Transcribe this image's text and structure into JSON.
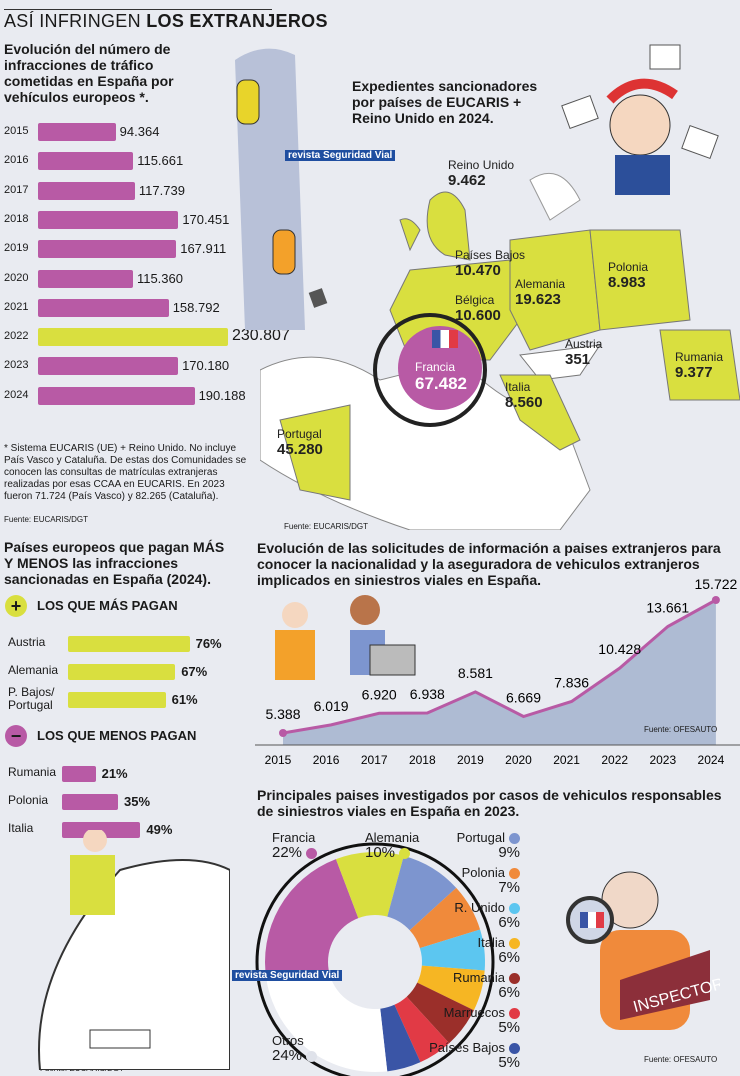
{
  "header": {
    "title_light": "ASÍ INFRINGEN",
    "title_bold": "LOS EXTRANJEROS"
  },
  "logo": "revista Seguridad Vial",
  "chart_data": [
    {
      "type": "bar",
      "orientation": "horizontal",
      "title": "Evolución del número de infracciones de tráfico cometidas en España por vehículos europeos *.",
      "categories": [
        "2015",
        "2016",
        "2017",
        "2018",
        "2019",
        "2020",
        "2021",
        "2022",
        "2023",
        "2024"
      ],
      "values": [
        94364,
        115661,
        117739,
        170451,
        167911,
        115360,
        158792,
        230807,
        170180,
        190188
      ],
      "value_labels": [
        "94.364",
        "115.661",
        "117.739",
        "170.451",
        "167.911",
        "115.360",
        "158.792",
        "230.807",
        "170.180",
        "190.188"
      ],
      "highlight": "2022",
      "colors": {
        "default": "#b85aa5",
        "highlight": "#d9df3f"
      },
      "footnote": "* Sistema EUCARIS (UE) + Reino Unido. No incluye País Vasco y Cataluña. De estas dos Comunidades se conocen las consultas de matrículas extranjeras realizadas por esas CCAA en EUCARIS. En 2023 fueron 71.724 (País Vasco) y 82.265 (Cataluña).",
      "source": "Fuente: EUCARIS/DGT"
    },
    {
      "type": "map",
      "title": "Expedientes sancionadores por países de EUCARIS + Reino Unido en 2024.",
      "regions": [
        {
          "name": "Reino Unido",
          "value": "9.462"
        },
        {
          "name": "Países Bajos",
          "value": "10.470"
        },
        {
          "name": "Alemania",
          "value": "19.623"
        },
        {
          "name": "Polonia",
          "value": "8.983"
        },
        {
          "name": "Bélgica",
          "value": "10.600"
        },
        {
          "name": "Francia",
          "value": "67.482"
        },
        {
          "name": "Austria",
          "value": "351"
        },
        {
          "name": "Rumania",
          "value": "9.377"
        },
        {
          "name": "Italia",
          "value": "8.560"
        },
        {
          "name": "Portugal",
          "value": "45.280"
        }
      ],
      "source": "Fuente: EUCARIS/DGT"
    },
    {
      "type": "bar",
      "orientation": "horizontal",
      "title": "Países europeos que pagan MÁS Y MENOS las infracciones sancionadas en España (2024).",
      "groups": [
        {
          "label": "LOS QUE MÁS PAGAN",
          "color": "#d9df3f",
          "categories": [
            "Austria",
            "Alemania",
            "P. Bajos/ Portugal"
          ],
          "values": [
            76,
            67,
            61
          ]
        },
        {
          "label": "LOS QUE MENOS PAGAN",
          "color": "#b85aa5",
          "categories": [
            "Rumania",
            "Polonia",
            "Italia"
          ],
          "values": [
            21,
            35,
            49
          ]
        }
      ],
      "unit": "%",
      "source": "Fuente: EUCARIS/DGT"
    },
    {
      "type": "area",
      "title": "Evolución de las solicitudes de información a paises extranjeros para conocer la nacionalidad y la aseguradora de vehiculos extranjeros implicados en siniestros viales en España.",
      "x": [
        "2015",
        "2016",
        "2017",
        "2018",
        "2019",
        "2020",
        "2021",
        "2022",
        "2023",
        "2024"
      ],
      "values": [
        5388,
        6019,
        6920,
        6938,
        8581,
        6669,
        7836,
        10428,
        13661,
        15722
      ],
      "value_labels": [
        "5.388",
        "6.019",
        "6.920",
        "6.938",
        "8.581",
        "6.669",
        "7.836",
        "10.428",
        "13.661",
        "15.722"
      ],
      "colors": {
        "line": "#b85aa5",
        "area": "#aebbd3"
      },
      "source": "Fuente: OFESAUTO"
    },
    {
      "type": "pie",
      "donut": true,
      "title": "Principales paises investigados por casos de vehiculos responsables de siniestros viales en España en 2023.",
      "slices": [
        {
          "name": "Francia",
          "value": 22,
          "color": "#b85aa5"
        },
        {
          "name": "Alemania",
          "value": 10,
          "color": "#d9df3f"
        },
        {
          "name": "Portugal",
          "value": 9,
          "color": "#7d95cf"
        },
        {
          "name": "Polonia",
          "value": 7,
          "color": "#f08a3b"
        },
        {
          "name": "R. Unido",
          "value": 6,
          "color": "#5cc6f0"
        },
        {
          "name": "Italia",
          "value": 6,
          "color": "#f6b623"
        },
        {
          "name": "Rumania",
          "value": 6,
          "color": "#9b2f2a"
        },
        {
          "name": "Marruecos",
          "value": 5,
          "color": "#e13a45"
        },
        {
          "name": "Países Bajos",
          "value": 5,
          "color": "#3a55a6"
        },
        {
          "name": "Otros",
          "value": 24,
          "color": "#ffffff"
        }
      ],
      "unit": "%",
      "source": "Fuente: OFESAUTO",
      "illustration_text": "INSPECTOR"
    }
  ]
}
